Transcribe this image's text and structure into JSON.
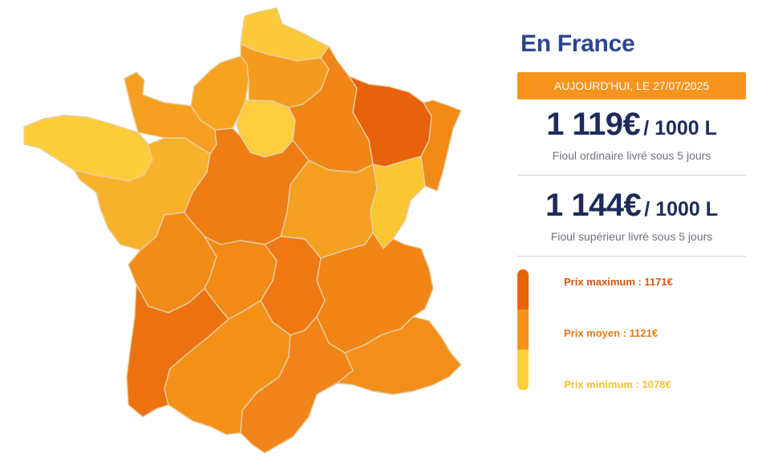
{
  "panel": {
    "title": "En France",
    "date_banner": "AUJOURD'HUI, LE 27/07/2025",
    "prices": [
      {
        "value": "1 119€",
        "unit": "/ 1000 L",
        "description": "Fioul ordinaire livré sous 5 jours"
      },
      {
        "value": "1 144€",
        "unit": "/ 1000 L",
        "description": "Fioul supérieur livré sous 5 jours"
      }
    ]
  },
  "legend": {
    "items": [
      {
        "label": "Prix maximum : 1171€",
        "color": "#e8630a",
        "text_color": "#d9570a"
      },
      {
        "label": "Prix moyen : 1121€",
        "color": "#f7931b",
        "text_color": "#ea7a12"
      },
      {
        "label": "Prix minimum : 1078€",
        "color": "#fcd03a",
        "text_color": "#f5c32a"
      }
    ]
  },
  "map": {
    "border_color": "#e6cfa4",
    "regions": [
      {
        "id": "nord",
        "color": "#fcc93a"
      },
      {
        "id": "normandie-haute",
        "color": "#f6a321"
      },
      {
        "id": "picardie",
        "color": "#f59b1e"
      },
      {
        "id": "ile-de-france",
        "color": "#fdcd3e"
      },
      {
        "id": "normandie-basse",
        "color": "#f5a023"
      },
      {
        "id": "bretagne",
        "color": "#fdcc39"
      },
      {
        "id": "champagne",
        "color": "#f18516"
      },
      {
        "id": "lorraine",
        "color": "#e8620b"
      },
      {
        "id": "alsace",
        "color": "#f18a17"
      },
      {
        "id": "pays-de-la-loire",
        "color": "#f8b12b"
      },
      {
        "id": "centre",
        "color": "#ef7d14"
      },
      {
        "id": "bourgogne",
        "color": "#f6a021"
      },
      {
        "id": "franche-comte",
        "color": "#fbc634"
      },
      {
        "id": "poitou-charentes",
        "color": "#f28c18"
      },
      {
        "id": "limousin",
        "color": "#f28a18"
      },
      {
        "id": "auvergne",
        "color": "#ee7912"
      },
      {
        "id": "rhone-alpes",
        "color": "#f18617"
      },
      {
        "id": "aquitaine",
        "color": "#ec7211"
      },
      {
        "id": "midi-pyrenees",
        "color": "#f39119"
      },
      {
        "id": "languedoc",
        "color": "#f1851a"
      },
      {
        "id": "paca",
        "color": "#f28f1a"
      }
    ]
  }
}
